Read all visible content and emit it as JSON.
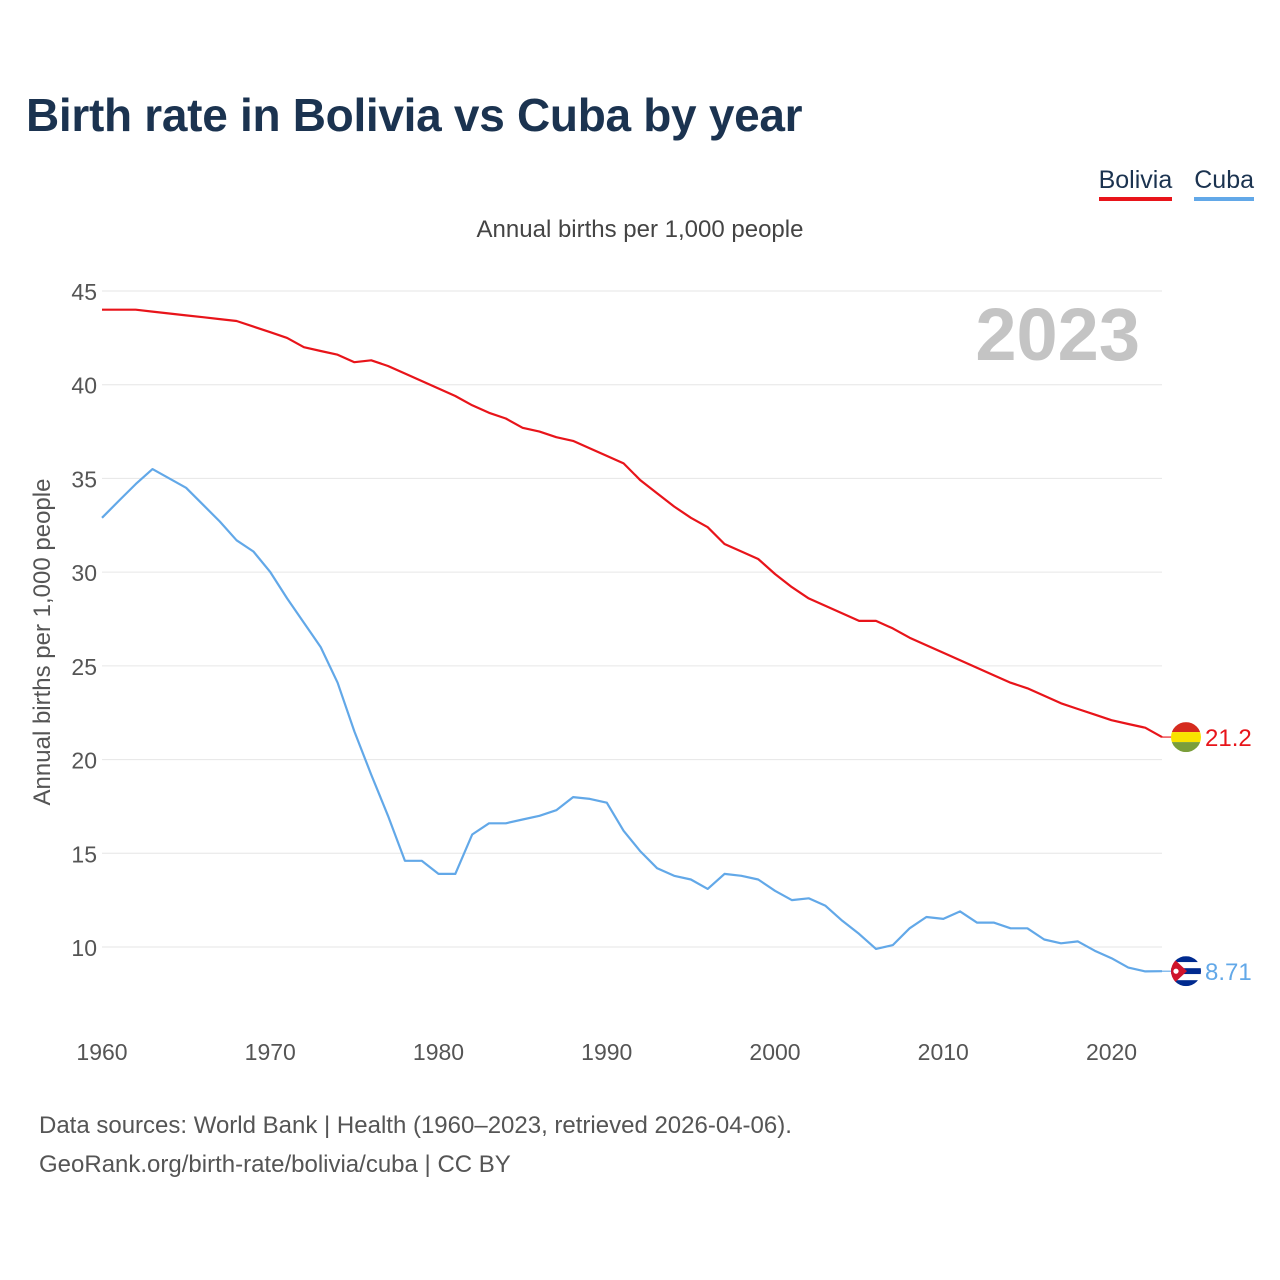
{
  "title": "Birth rate in Bolivia vs Cuba by year",
  "legend": {
    "bolivia": "Bolivia",
    "cuba": "Cuba"
  },
  "subtitle": "Annual births per 1,000 people",
  "year_watermark": "2023",
  "colors": {
    "bolivia": "#e8141a",
    "cuba": "#62a8e8",
    "title": "#1b3350",
    "grid": "#e6e6e6",
    "watermark": "#c4c4c4"
  },
  "icons": {
    "bolivia": "bolivia-flag-icon",
    "cuba": "cuba-flag-icon"
  },
  "footer": {
    "line1": "Data sources: World Bank | Health (1960–2023, retrieved 2026-04-06).",
    "line2": "GeoRank.org/birth-rate/bolivia/cuba | CC BY"
  },
  "chart_data": {
    "type": "line",
    "title": "Birth rate in Bolivia vs Cuba by year",
    "xlabel": "",
    "ylabel": "Annual births per 1,000 people",
    "xlim": [
      1960,
      2023
    ],
    "ylim": [
      6.5,
      46
    ],
    "xticks": [
      1960,
      1970,
      1980,
      1990,
      2000,
      2010,
      2020
    ],
    "yticks": [
      10,
      15,
      20,
      25,
      30,
      35,
      40,
      45
    ],
    "grid": true,
    "legend": "top-right",
    "x": [
      1960,
      1961,
      1962,
      1963,
      1964,
      1965,
      1966,
      1967,
      1968,
      1969,
      1970,
      1971,
      1972,
      1973,
      1974,
      1975,
      1976,
      1977,
      1978,
      1979,
      1980,
      1981,
      1982,
      1983,
      1984,
      1985,
      1986,
      1987,
      1988,
      1989,
      1990,
      1991,
      1992,
      1993,
      1994,
      1995,
      1996,
      1997,
      1998,
      1999,
      2000,
      2001,
      2002,
      2003,
      2004,
      2005,
      2006,
      2007,
      2008,
      2009,
      2010,
      2011,
      2012,
      2013,
      2014,
      2015,
      2016,
      2017,
      2018,
      2019,
      2020,
      2021,
      2022,
      2023
    ],
    "series": [
      {
        "name": "Bolivia",
        "end_label": "21.2",
        "values": [
          44.0,
          44.0,
          44.0,
          43.9,
          43.8,
          43.7,
          43.6,
          43.5,
          43.4,
          43.1,
          42.8,
          42.5,
          42.0,
          41.8,
          41.6,
          41.2,
          41.3,
          41.0,
          40.6,
          40.2,
          39.8,
          39.4,
          38.9,
          38.5,
          38.2,
          37.7,
          37.5,
          37.2,
          37.0,
          36.6,
          36.2,
          35.8,
          34.9,
          34.2,
          33.5,
          32.9,
          32.4,
          31.5,
          31.1,
          30.7,
          29.9,
          29.2,
          28.6,
          28.2,
          27.8,
          27.4,
          27.4,
          27.0,
          26.5,
          26.1,
          25.7,
          25.3,
          24.9,
          24.5,
          24.1,
          23.8,
          23.4,
          23.0,
          22.7,
          22.4,
          22.1,
          21.9,
          21.7,
          21.2
        ]
      },
      {
        "name": "Cuba",
        "end_label": "8.71",
        "values": [
          32.9,
          33.8,
          34.7,
          35.5,
          35.0,
          34.5,
          33.6,
          32.7,
          31.7,
          31.1,
          30.0,
          28.6,
          27.3,
          26.0,
          24.1,
          21.5,
          19.2,
          17.0,
          14.6,
          14.6,
          13.9,
          13.9,
          16.0,
          16.6,
          16.6,
          16.8,
          17.0,
          17.3,
          18.0,
          17.9,
          17.7,
          16.2,
          15.1,
          14.2,
          13.8,
          13.6,
          13.1,
          13.9,
          13.8,
          13.6,
          13.0,
          12.5,
          12.6,
          12.2,
          11.4,
          10.7,
          9.9,
          10.1,
          11.0,
          11.6,
          11.5,
          11.9,
          11.3,
          11.3,
          11.0,
          11.0,
          10.4,
          10.2,
          10.3,
          9.8,
          9.4,
          8.9,
          8.7,
          8.71
        ]
      }
    ]
  }
}
